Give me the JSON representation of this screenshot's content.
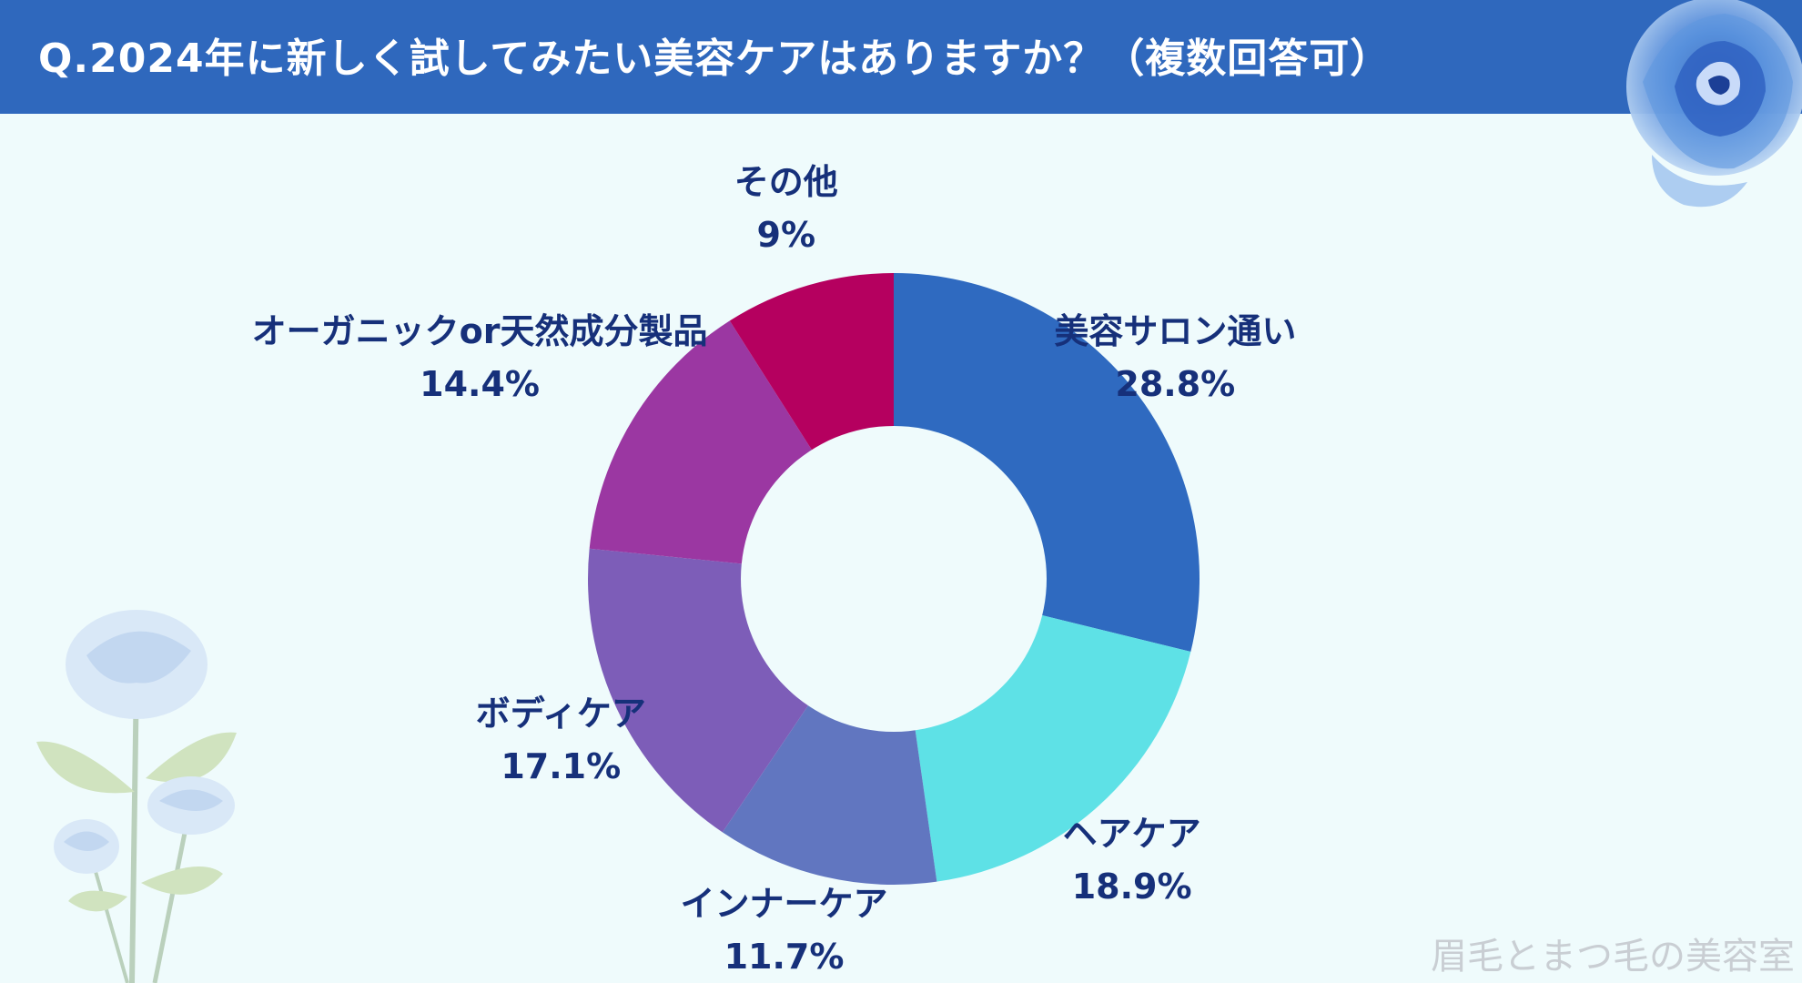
{
  "header": {
    "title": "Q.2024年に新しく試してみたい美容ケアはありますか？（複数回答可）",
    "color": "#2f68bd"
  },
  "watermark": "眉毛とまつ毛の美容室",
  "chart_data": {
    "type": "pie",
    "donut": true,
    "title": "Q.2024年に新しく試してみたい美容ケアはありますか？（複数回答可）",
    "categories": [
      "美容サロン通い",
      "ヘアケア",
      "インナーケア",
      "ボディケア",
      "オーガニックor天然成分製品",
      "その他"
    ],
    "values": [
      28.8,
      18.9,
      11.7,
      17.1,
      14.4,
      9
    ],
    "value_labels": [
      "28.8%",
      "18.9%",
      "11.7%",
      "17.1%",
      "14.4%",
      "9%"
    ],
    "colors": [
      "#2f6ac0",
      "#5ee1e6",
      "#6176c0",
      "#7d5db8",
      "#9b37a2",
      "#b5005f"
    ],
    "start_angle_deg": 0,
    "direction": "clockwise",
    "legend": "none"
  }
}
